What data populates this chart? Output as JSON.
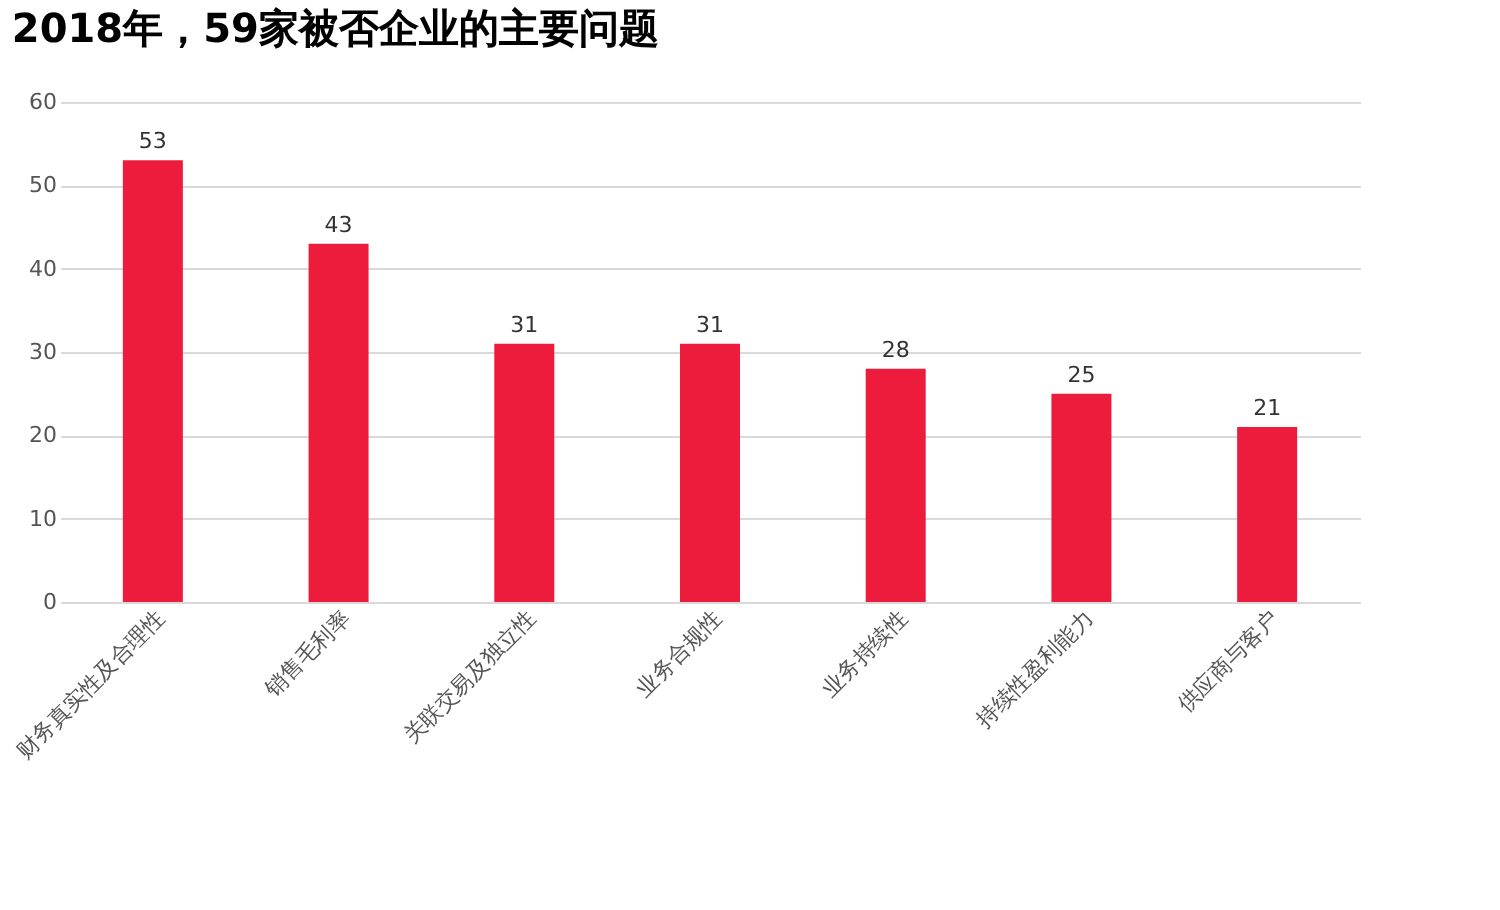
{
  "chart_data": {
    "type": "bar",
    "title": "2018年，59家被否企业的主要问题",
    "categories": [
      "财务真实性及合理性",
      "销售毛利率",
      "关联交易及独立性",
      "业务合规性",
      "业务持续性",
      "持续性盈利能力",
      "供应商与客户"
    ],
    "values": [
      53,
      43,
      31,
      31,
      28,
      25,
      21
    ],
    "color": "#ee1c3c",
    "ylim": [
      0,
      60
    ],
    "yticks": [
      0,
      10,
      20,
      30,
      40,
      50,
      60
    ],
    "grid": "y",
    "data_labels": true
  }
}
